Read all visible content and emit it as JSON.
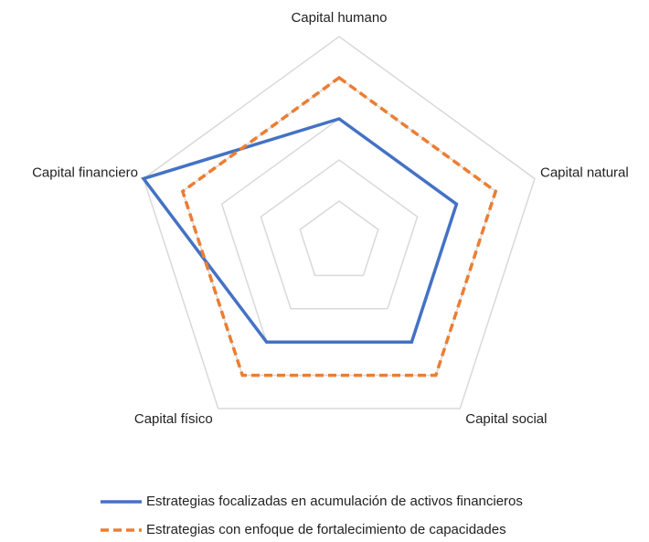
{
  "chart_data": {
    "type": "radar",
    "categories": [
      "Capital humano",
      "Capital natural",
      "Capital social",
      "Capital físico",
      "Capital financiero"
    ],
    "series": [
      {
        "name": "Estrategias focalizadas en acumulación de activos financieros",
        "color": "#4472c4",
        "dash": false,
        "values": [
          3,
          3,
          3,
          3,
          5
        ]
      },
      {
        "name": "Estrategias con enfoque de fortalecimiento de capacidades",
        "color": "#ed7d31",
        "dash": true,
        "values": [
          4,
          4,
          4,
          4,
          4
        ]
      }
    ],
    "ylim": [
      0,
      5
    ],
    "yticks": [
      1,
      2,
      3,
      4,
      5
    ],
    "grid": true,
    "legend": "bottom"
  }
}
